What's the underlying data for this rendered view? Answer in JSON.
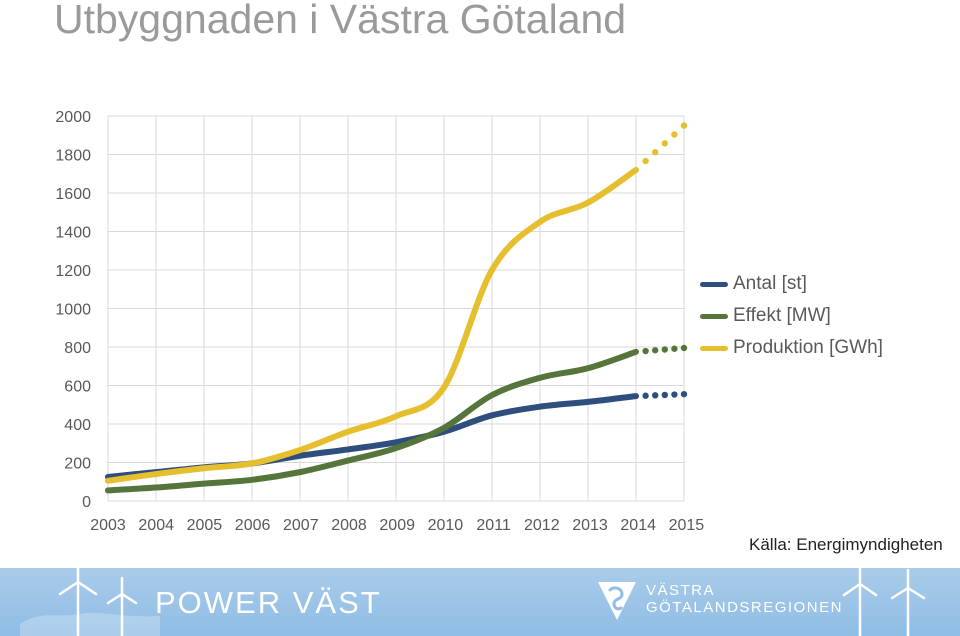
{
  "title": "Utbyggnaden i Västra Götaland",
  "source": "Källa: Energimyndigheten",
  "footer": {
    "brand": "POWER VÄST",
    "region_line1": "VÄSTRA",
    "region_line2": "GÖTALANDSREGIONEN"
  },
  "colors": {
    "antal": "#2e4e7e",
    "effekt": "#55753a",
    "produktion": "#e6bf2f",
    "grid": "#d9d9d9",
    "footer_bg": "#9cc4e7"
  },
  "chart_data": {
    "type": "line",
    "title": "",
    "xlabel": "",
    "ylabel": "",
    "categories": [
      "2003",
      "2004",
      "2005",
      "2006",
      "2007",
      "2008",
      "2009",
      "2010",
      "2011",
      "2012",
      "2013",
      "2014",
      "2015"
    ],
    "ylim": [
      0,
      2000
    ],
    "yticks": [
      0,
      200,
      400,
      600,
      800,
      1000,
      1200,
      1400,
      1600,
      1800,
      2000
    ],
    "grid": true,
    "legend_position": "right",
    "projection_style": "dotted",
    "series": [
      {
        "name": "Antal [st]",
        "color": "#2e4e7e",
        "values": [
          125,
          150,
          175,
          195,
          235,
          268,
          305,
          360,
          445,
          490,
          515,
          545,
          555
        ],
        "projected_from_index": 11
      },
      {
        "name": "Effekt [MW]",
        "color": "#55753a",
        "values": [
          55,
          70,
          90,
          110,
          150,
          210,
          275,
          380,
          550,
          640,
          690,
          775,
          795
        ],
        "projected_from_index": 11
      },
      {
        "name": "Produktion [GWh]",
        "color": "#e6bf2f",
        "values": [
          105,
          140,
          170,
          195,
          265,
          360,
          440,
          590,
          1200,
          1450,
          1550,
          1720,
          1950
        ],
        "projected_from_index": 11
      }
    ]
  }
}
